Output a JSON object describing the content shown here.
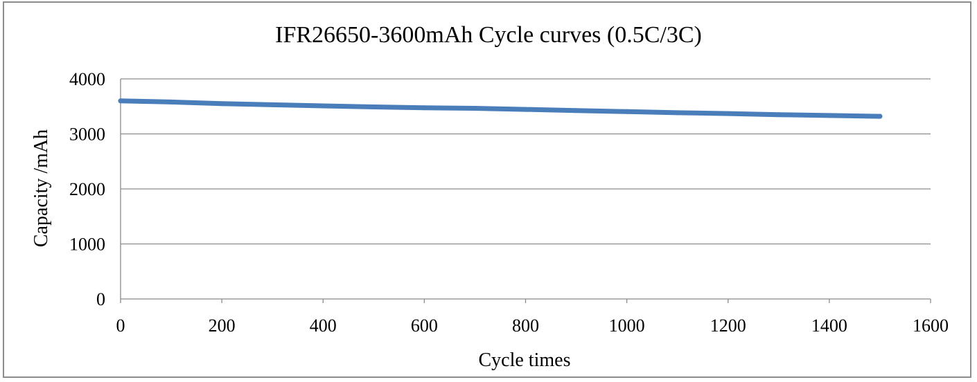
{
  "chart_data": {
    "type": "line",
    "title": "IFR26650-3600mAh Cycle curves (0.5C/3C)",
    "xlabel": "Cycle times",
    "ylabel": "Capacity /mAh",
    "xlim": [
      0,
      1600
    ],
    "ylim": [
      0,
      4000
    ],
    "x_ticks": [
      "0",
      "200",
      "400",
      "600",
      "800",
      "1000",
      "1200",
      "1400",
      "1600"
    ],
    "y_ticks": [
      "0",
      "1000",
      "2000",
      "3000",
      "4000"
    ],
    "grid": true,
    "legend": "none",
    "series": [
      {
        "name": "Capacity",
        "color": "#4a7ebb",
        "x": [
          0,
          100,
          200,
          300,
          400,
          500,
          600,
          700,
          800,
          900,
          1000,
          1100,
          1200,
          1300,
          1400,
          1500
        ],
        "y": [
          3600,
          3580,
          3550,
          3530,
          3510,
          3490,
          3475,
          3465,
          3445,
          3425,
          3405,
          3385,
          3370,
          3350,
          3335,
          3320
        ]
      }
    ]
  }
}
